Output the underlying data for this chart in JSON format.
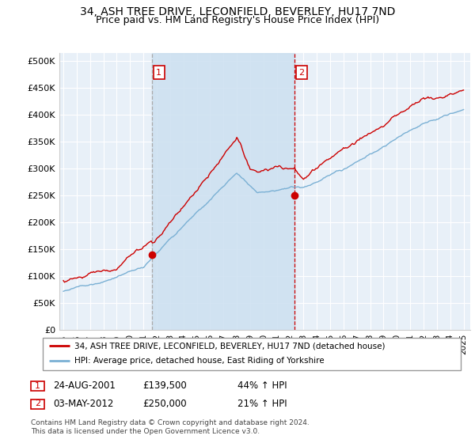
{
  "title": "34, ASH TREE DRIVE, LECONFIELD, BEVERLEY, HU17 7ND",
  "subtitle": "Price paid vs. HM Land Registry's House Price Index (HPI)",
  "ylabel_ticks": [
    "£0",
    "£50K",
    "£100K",
    "£150K",
    "£200K",
    "£250K",
    "£300K",
    "£350K",
    "£400K",
    "£450K",
    "£500K"
  ],
  "ytick_values": [
    0,
    50000,
    100000,
    150000,
    200000,
    250000,
    300000,
    350000,
    400000,
    450000,
    500000
  ],
  "xlim_start": 1994.7,
  "xlim_end": 2025.5,
  "ylim": [
    0,
    515000
  ],
  "sale1_date": 2001.65,
  "sale1_price": 139500,
  "sale1_label": "1",
  "sale2_date": 2012.35,
  "sale2_price": 250000,
  "sale2_label": "2",
  "legend_line1": "34, ASH TREE DRIVE, LECONFIELD, BEVERLEY, HU17 7ND (detached house)",
  "legend_line2": "HPI: Average price, detached house, East Riding of Yorkshire",
  "table_row1": [
    "1",
    "24-AUG-2001",
    "£139,500",
    "44% ↑ HPI"
  ],
  "table_row2": [
    "2",
    "03-MAY-2012",
    "£250,000",
    "21% ↑ HPI"
  ],
  "footnote1": "Contains HM Land Registry data © Crown copyright and database right 2024.",
  "footnote2": "This data is licensed under the Open Government Licence v3.0.",
  "price_color": "#cc0000",
  "hpi_color": "#7ab0d4",
  "shade_color": "#cce0f0",
  "bg_color": "#e8f0f8",
  "plot_bg": "#e8f0f8",
  "grid_color": "#ffffff",
  "vline1_color": "#aaaaaa",
  "vline1_style": "--",
  "vline2_color": "#cc0000",
  "vline2_style": "--",
  "title_fontsize": 10,
  "subtitle_fontsize": 9
}
